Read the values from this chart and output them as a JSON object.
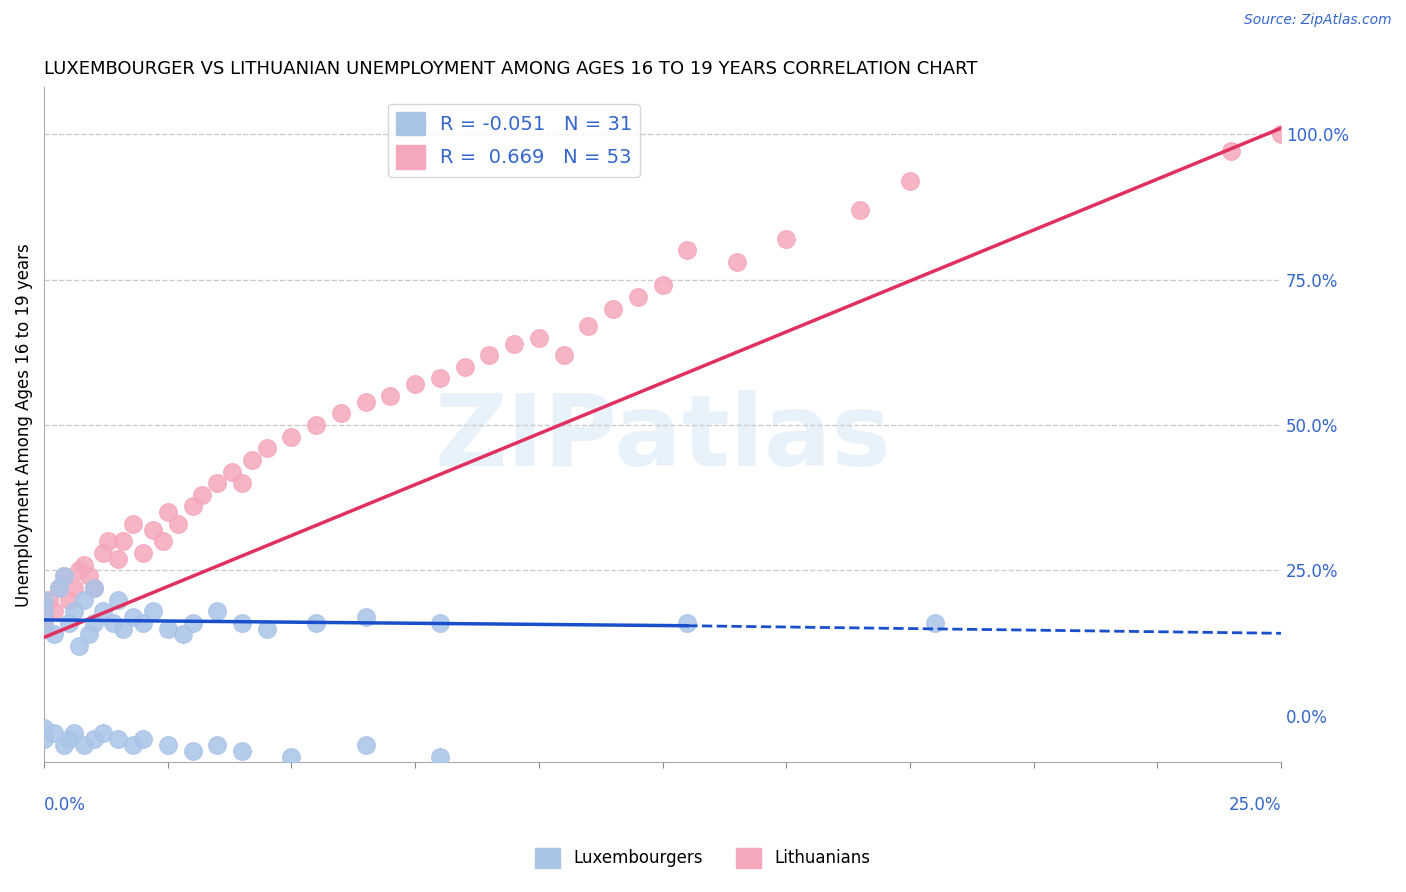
{
  "title": "LUXEMBOURGER VS LITHUANIAN UNEMPLOYMENT AMONG AGES 16 TO 19 YEARS CORRELATION CHART",
  "source": "Source: ZipAtlas.com",
  "ylabel": "Unemployment Among Ages 16 to 19 years",
  "ylabel_right_ticks": [
    "0.0%",
    "25.0%",
    "50.0%",
    "75.0%",
    "100.0%"
  ],
  "ylabel_right_vals": [
    0.0,
    0.25,
    0.5,
    0.75,
    1.0
  ],
  "xlim": [
    0.0,
    0.25
  ],
  "ylim": [
    -0.08,
    1.08
  ],
  "lux_R": -0.051,
  "lux_N": 31,
  "lith_R": 0.669,
  "lith_N": 53,
  "lux_color": "#aac4e8",
  "lith_color": "#f5a8bb",
  "lux_line_color": "#1a4fcc",
  "lith_line_color": "#e03060",
  "lux_scatter_x": [
    0.0,
    0.0,
    0.0,
    0.002,
    0.003,
    0.004,
    0.005,
    0.006,
    0.007,
    0.008,
    0.009,
    0.01,
    0.01,
    0.012,
    0.014,
    0.015,
    0.016,
    0.018,
    0.02,
    0.022,
    0.025,
    0.028,
    0.03,
    0.035,
    0.04,
    0.045,
    0.055,
    0.065,
    0.08,
    0.13,
    0.18
  ],
  "lux_scatter_y": [
    0.16,
    0.18,
    0.2,
    0.14,
    0.22,
    0.24,
    0.16,
    0.18,
    0.12,
    0.2,
    0.14,
    0.16,
    0.22,
    0.18,
    0.16,
    0.2,
    0.15,
    0.17,
    0.16,
    0.18,
    0.15,
    0.14,
    0.16,
    0.18,
    0.16,
    0.15,
    0.16,
    0.17,
    0.16,
    0.16,
    0.16
  ],
  "lux_neg_x": [
    0.0,
    0.0,
    0.002,
    0.004,
    0.005,
    0.006,
    0.008,
    0.01,
    0.012,
    0.015,
    0.018,
    0.02,
    0.025,
    0.03,
    0.035,
    0.04,
    0.05,
    0.065,
    0.08
  ],
  "lux_neg_y": [
    -0.02,
    -0.04,
    -0.03,
    -0.05,
    -0.04,
    -0.03,
    -0.05,
    -0.04,
    -0.03,
    -0.04,
    -0.05,
    -0.04,
    -0.05,
    -0.06,
    -0.05,
    -0.06,
    -0.07,
    -0.05,
    -0.07
  ],
  "lith_scatter_x": [
    0.0,
    0.0,
    0.0,
    0.001,
    0.002,
    0.003,
    0.004,
    0.005,
    0.006,
    0.007,
    0.008,
    0.009,
    0.01,
    0.012,
    0.013,
    0.015,
    0.016,
    0.018,
    0.02,
    0.022,
    0.024,
    0.025,
    0.027,
    0.03,
    0.032,
    0.035,
    0.038,
    0.04,
    0.042,
    0.045,
    0.05,
    0.055,
    0.06,
    0.065,
    0.07,
    0.075,
    0.08,
    0.085,
    0.09,
    0.095,
    0.1,
    0.105,
    0.11,
    0.115,
    0.12,
    0.125,
    0.13,
    0.14,
    0.15,
    0.165,
    0.175,
    0.24,
    0.25
  ],
  "lith_scatter_y": [
    0.15,
    0.17,
    0.19,
    0.2,
    0.18,
    0.22,
    0.24,
    0.2,
    0.22,
    0.25,
    0.26,
    0.24,
    0.22,
    0.28,
    0.3,
    0.27,
    0.3,
    0.33,
    0.28,
    0.32,
    0.3,
    0.35,
    0.33,
    0.36,
    0.38,
    0.4,
    0.42,
    0.4,
    0.44,
    0.46,
    0.48,
    0.5,
    0.52,
    0.54,
    0.55,
    0.57,
    0.58,
    0.6,
    0.62,
    0.64,
    0.65,
    0.62,
    0.67,
    0.7,
    0.72,
    0.74,
    0.8,
    0.78,
    0.82,
    0.87,
    0.92,
    0.97,
    1.0
  ],
  "lux_line_x0": 0.0,
  "lux_line_x_solid_end": 0.13,
  "lux_line_x1": 0.25,
  "lux_line_y0": 0.165,
  "lux_line_y_solid_end": 0.155,
  "lux_line_y1": 0.142,
  "lith_line_x0": 0.0,
  "lith_line_x1": 0.25,
  "lith_line_y0": 0.135,
  "lith_line_y1": 1.01,
  "watermark_text": "ZIPatlas",
  "background_color": "#ffffff",
  "grid_color": "#cccccc"
}
